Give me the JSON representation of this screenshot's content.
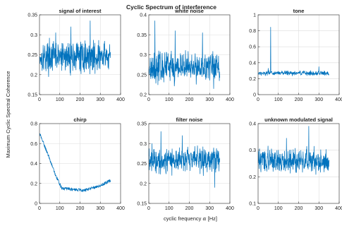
{
  "suptitle": "Cyclic Spectrum of interference",
  "ylabel": "Maximum Cyclic Spectral Coherence",
  "xlabel_prefix": "cyclic frequency ",
  "xlabel_symbol": "α",
  "xlabel_suffix": " [Hz]",
  "line_color": "#0072bd",
  "chart_data": [
    {
      "type": "line",
      "title": "signal of interest",
      "xlim": [
        0,
        400
      ],
      "ylim": [
        0.15,
        0.35
      ],
      "xticks": [
        0,
        100,
        200,
        300,
        400
      ],
      "yticks": [
        0.15,
        0.2,
        0.25,
        0.3,
        0.35
      ],
      "xticklabels": [
        "0",
        "100",
        "200",
        "300",
        "400"
      ],
      "yticklabels": [
        "0.15",
        "0.2",
        "0.25",
        "0.3",
        "0.35"
      ],
      "grid": true,
      "x_range": [
        1,
        350
      ],
      "pattern": "noise",
      "baseline": 0.245,
      "amp": 0.035,
      "min": 0.185,
      "max": 0.335,
      "peaks": [
        [
          80,
          0.305
        ],
        [
          155,
          0.32
        ],
        [
          250,
          0.335
        ],
        [
          45,
          0.195
        ]
      ]
    },
    {
      "type": "line",
      "title": "white noise",
      "xlim": [
        0,
        400
      ],
      "ylim": [
        0.2,
        0.4
      ],
      "xticks": [
        0,
        100,
        200,
        300,
        400
      ],
      "yticks": [
        0.2,
        0.25,
        0.3,
        0.35,
        0.4
      ],
      "xticklabels": [
        "0",
        "100",
        "200",
        "300",
        "400"
      ],
      "yticklabels": [
        "0.2",
        "0.25",
        "0.3",
        "0.35",
        "0.4"
      ],
      "grid": true,
      "x_range": [
        1,
        350
      ],
      "pattern": "noise",
      "baseline": 0.27,
      "amp": 0.035,
      "min": 0.215,
      "max": 0.39,
      "peaks": [
        [
          30,
          0.385
        ],
        [
          130,
          0.36
        ],
        [
          265,
          0.355
        ],
        [
          320,
          0.215
        ]
      ]
    },
    {
      "type": "line",
      "title": "tone",
      "xlim": [
        0,
        400
      ],
      "ylim": [
        0,
        1
      ],
      "xticks": [
        0,
        100,
        200,
        300,
        400
      ],
      "yticks": [
        0,
        0.2,
        0.4,
        0.6,
        0.8,
        1
      ],
      "xticklabels": [
        "0",
        "100",
        "200",
        "300",
        "400"
      ],
      "yticklabels": [
        "0",
        "0.2",
        "0.4",
        "0.6",
        "0.8",
        "1"
      ],
      "grid": true,
      "x_range": [
        1,
        350
      ],
      "pattern": "noise",
      "baseline": 0.27,
      "amp": 0.025,
      "min": 0.2,
      "max": 0.85,
      "peaks": [
        [
          62,
          0.845
        ],
        [
          50,
          0.33
        ],
        [
          300,
          0.35
        ]
      ]
    },
    {
      "type": "line",
      "title": "chirp",
      "xlim": [
        0,
        400
      ],
      "ylim": [
        0,
        0.8
      ],
      "xticks": [
        0,
        100,
        200,
        300,
        400
      ],
      "yticks": [
        0,
        0.2,
        0.4,
        0.6,
        0.8
      ],
      "xticklabels": [
        "0",
        "100",
        "200",
        "300",
        "400"
      ],
      "yticklabels": [
        "0",
        "0.2",
        "0.4",
        "0.6",
        "0.8"
      ],
      "grid": true,
      "x_range": [
        1,
        350
      ],
      "pattern": "chirp",
      "knots": [
        [
          1,
          0.7
        ],
        [
          40,
          0.5
        ],
        [
          80,
          0.28
        ],
        [
          110,
          0.15
        ],
        [
          220,
          0.13
        ],
        [
          300,
          0.18
        ],
        [
          350,
          0.23
        ]
      ],
      "amp": 0.015,
      "min": 0.1,
      "max": 0.72,
      "peaks": []
    },
    {
      "type": "line",
      "title": "filter noise",
      "xlim": [
        0,
        400
      ],
      "ylim": [
        0.15,
        0.35
      ],
      "xticks": [
        0,
        100,
        200,
        300,
        400
      ],
      "yticks": [
        0.15,
        0.2,
        0.25,
        0.3,
        0.35
      ],
      "xticklabels": [
        "0",
        "100",
        "200",
        "300",
        "400"
      ],
      "yticklabels": [
        "0.15",
        "0.2",
        "0.25",
        "0.3",
        "0.35"
      ],
      "grid": true,
      "x_range": [
        1,
        350
      ],
      "pattern": "noise",
      "baseline": 0.26,
      "amp": 0.03,
      "min": 0.19,
      "max": 0.335,
      "peaks": [
        [
          60,
          0.33
        ],
        [
          165,
          0.32
        ],
        [
          325,
          0.19
        ]
      ]
    },
    {
      "type": "line",
      "title": "unknown modulated signal",
      "xlim": [
        0,
        400
      ],
      "ylim": [
        0.1,
        0.4
      ],
      "xticks": [
        0,
        100,
        200,
        300,
        400
      ],
      "yticks": [
        0.1,
        0.2,
        0.3,
        0.4
      ],
      "xticklabels": [
        "0",
        "100",
        "200",
        "300",
        "400"
      ],
      "yticklabels": [
        "0.1",
        "0.2",
        "0.3",
        "0.4"
      ],
      "grid": true,
      "x_range": [
        1,
        350
      ],
      "pattern": "noise",
      "baseline": 0.26,
      "amp": 0.04,
      "min": 0.16,
      "max": 0.39,
      "peaks": [
        [
          250,
          0.39
        ],
        [
          140,
          0.345
        ],
        [
          100,
          0.3
        ]
      ]
    }
  ]
}
